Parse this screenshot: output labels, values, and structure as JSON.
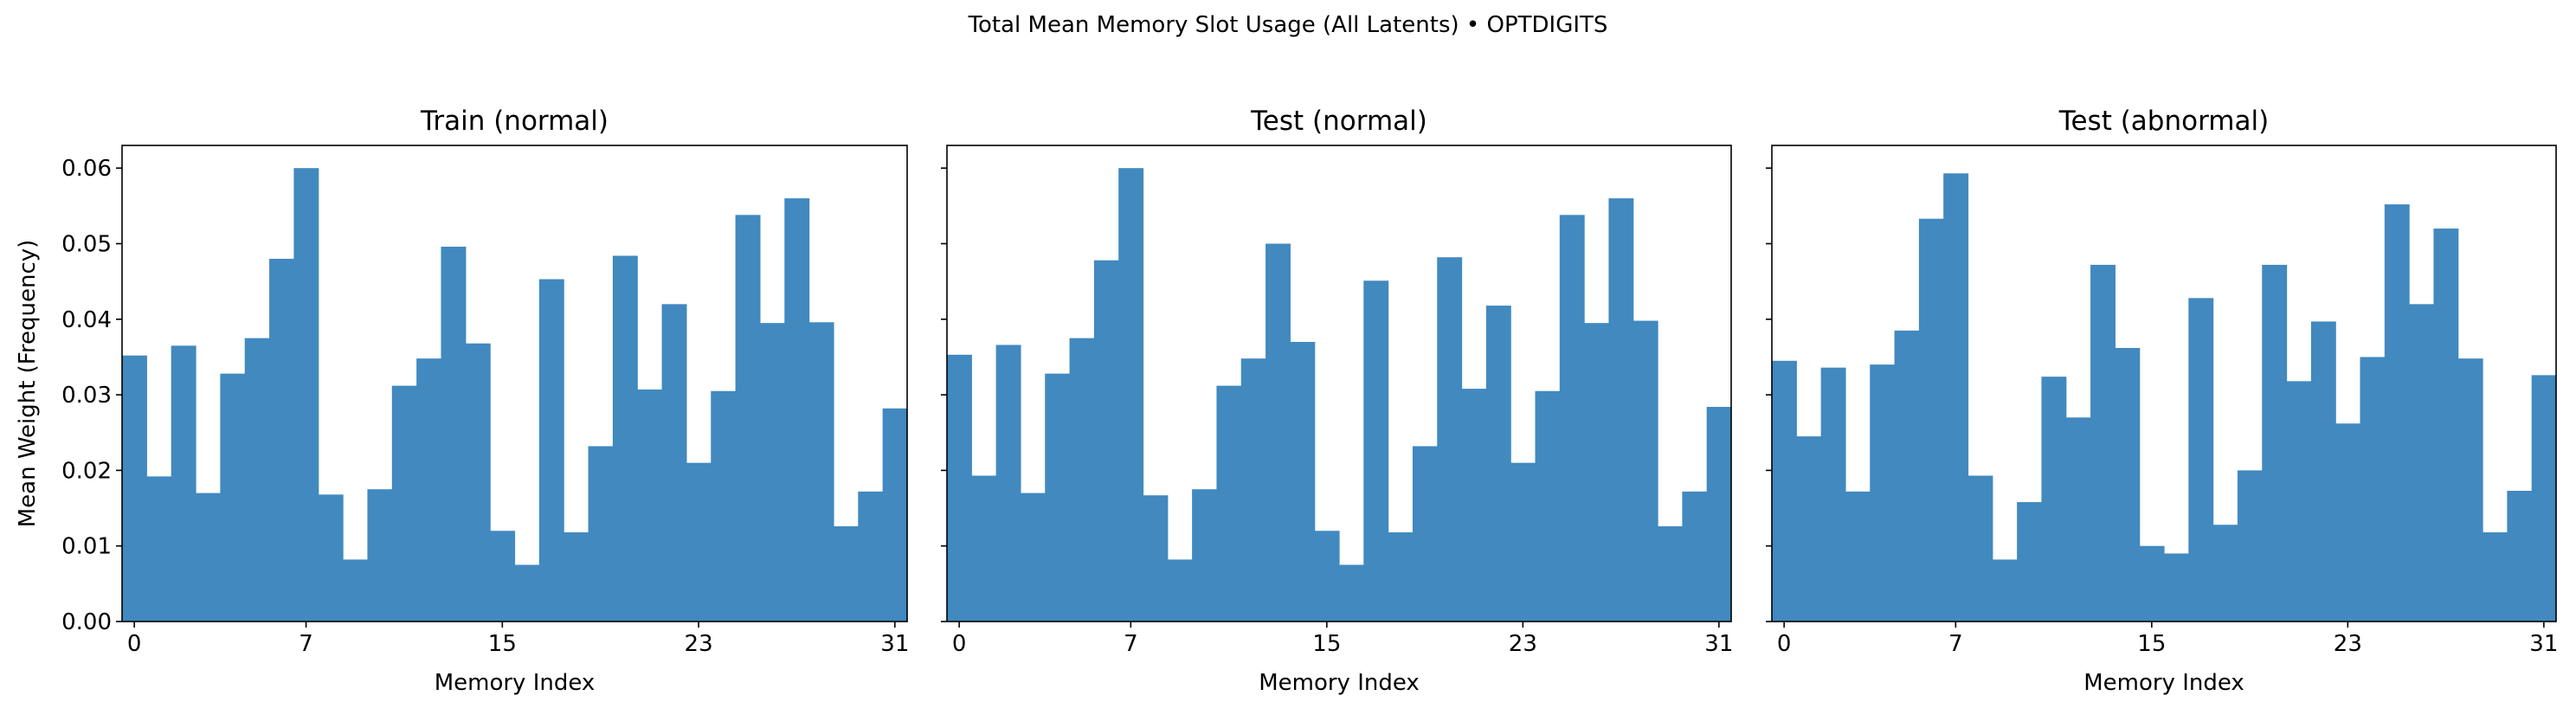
{
  "figure_title": "Total Mean Memory Slot Usage (All Latents) • OPTDIGITS",
  "colors": {
    "bar": "#4189bf",
    "axis": "#000000",
    "background": "#ffffff"
  },
  "chart_data": [
    {
      "type": "bar",
      "title": "Train (normal)",
      "xlabel": "Memory Index",
      "ylabel": "Mean Weight (Frequency)",
      "ylim": [
        0,
        0.063
      ],
      "xlim": [
        -0.5,
        31.5
      ],
      "xticks": [
        0,
        7,
        15,
        23,
        31
      ],
      "yticks": [
        0.0,
        0.01,
        0.02,
        0.03,
        0.04,
        0.05,
        0.06
      ],
      "ytick_labels": [
        "0.00",
        "0.01",
        "0.02",
        "0.03",
        "0.04",
        "0.05",
        "0.06"
      ],
      "grid": false,
      "categories": [
        0,
        1,
        2,
        3,
        4,
        5,
        6,
        7,
        8,
        9,
        10,
        11,
        12,
        13,
        14,
        15,
        16,
        17,
        18,
        19,
        20,
        21,
        22,
        23,
        24,
        25,
        26,
        27,
        28,
        29,
        30,
        31
      ],
      "values": [
        0.0352,
        0.0192,
        0.0365,
        0.017,
        0.0328,
        0.0375,
        0.048,
        0.06,
        0.0168,
        0.0082,
        0.0175,
        0.0312,
        0.0348,
        0.0496,
        0.0368,
        0.012,
        0.0075,
        0.0453,
        0.0118,
        0.0232,
        0.0484,
        0.0307,
        0.042,
        0.021,
        0.0305,
        0.0538,
        0.0395,
        0.056,
        0.0396,
        0.0126,
        0.0172,
        0.0282
      ]
    },
    {
      "type": "bar",
      "title": "Test (normal)",
      "xlabel": "Memory Index",
      "ylabel": "",
      "ylim": [
        0,
        0.063
      ],
      "xlim": [
        -0.5,
        31.5
      ],
      "xticks": [
        0,
        7,
        15,
        23,
        31
      ],
      "grid": false,
      "categories": [
        0,
        1,
        2,
        3,
        4,
        5,
        6,
        7,
        8,
        9,
        10,
        11,
        12,
        13,
        14,
        15,
        16,
        17,
        18,
        19,
        20,
        21,
        22,
        23,
        24,
        25,
        26,
        27,
        28,
        29,
        30,
        31
      ],
      "values": [
        0.0353,
        0.0193,
        0.0366,
        0.017,
        0.0328,
        0.0375,
        0.0478,
        0.06,
        0.0167,
        0.0082,
        0.0175,
        0.0312,
        0.0348,
        0.05,
        0.037,
        0.012,
        0.0075,
        0.0451,
        0.0118,
        0.0232,
        0.0482,
        0.0308,
        0.0418,
        0.021,
        0.0305,
        0.0538,
        0.0395,
        0.056,
        0.0398,
        0.0126,
        0.0172,
        0.0284
      ]
    },
    {
      "type": "bar",
      "title": "Test (abnormal)",
      "xlabel": "Memory Index",
      "ylabel": "",
      "ylim": [
        0,
        0.063
      ],
      "xlim": [
        -0.5,
        31.5
      ],
      "xticks": [
        0,
        7,
        15,
        23,
        31
      ],
      "grid": false,
      "categories": [
        0,
        1,
        2,
        3,
        4,
        5,
        6,
        7,
        8,
        9,
        10,
        11,
        12,
        13,
        14,
        15,
        16,
        17,
        18,
        19,
        20,
        21,
        22,
        23,
        24,
        25,
        26,
        27,
        28,
        29,
        30,
        31
      ],
      "values": [
        0.0345,
        0.0245,
        0.0336,
        0.0172,
        0.034,
        0.0385,
        0.0533,
        0.0593,
        0.0193,
        0.0082,
        0.0158,
        0.0324,
        0.027,
        0.0472,
        0.0362,
        0.01,
        0.009,
        0.0428,
        0.0128,
        0.02,
        0.0472,
        0.0318,
        0.0397,
        0.0262,
        0.035,
        0.0552,
        0.042,
        0.052,
        0.0348,
        0.0118,
        0.0173,
        0.0326
      ]
    }
  ]
}
